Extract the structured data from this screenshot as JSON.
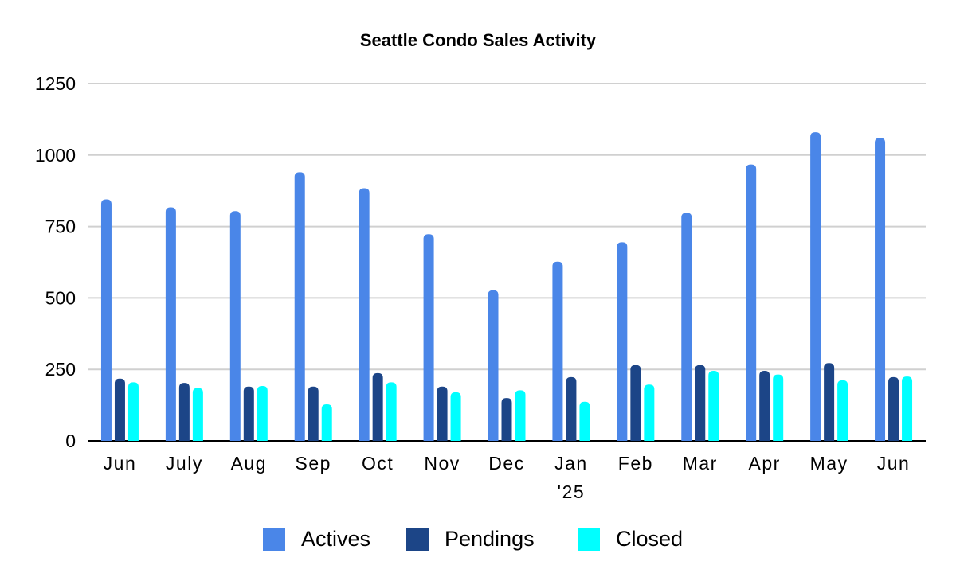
{
  "chart_data": {
    "type": "bar",
    "title": "Seattle Condo Sales Activity",
    "xlabel": "",
    "ylabel": "",
    "ylim": [
      0,
      1250
    ],
    "yticks": [
      0,
      250,
      500,
      750,
      1000,
      1250
    ],
    "grid": true,
    "legend_position": "bottom",
    "categories": [
      "Jun",
      "July",
      "Aug",
      "Sep",
      "Oct",
      "Nov",
      "Dec",
      "Jan\n'25",
      "Feb",
      "Mar",
      "Apr",
      "May",
      "Jun"
    ],
    "series": [
      {
        "name": "Actives",
        "color": "#4A86E8",
        "values": [
          845,
          817,
          804,
          940,
          884,
          723,
          527,
          627,
          695,
          798,
          967,
          1080,
          1060
        ]
      },
      {
        "name": "Pendings",
        "color": "#1C4587",
        "values": [
          218,
          203,
          190,
          190,
          237,
          190,
          150,
          223,
          265,
          265,
          245,
          272,
          223
        ]
      },
      {
        "name": "Closed",
        "color": "#00FFFF",
        "values": [
          205,
          185,
          192,
          128,
          205,
          170,
          177,
          137,
          197,
          245,
          232,
          212,
          225
        ]
      }
    ],
    "gridline_color": "#D0D0D0",
    "axis_color": "#000000"
  }
}
